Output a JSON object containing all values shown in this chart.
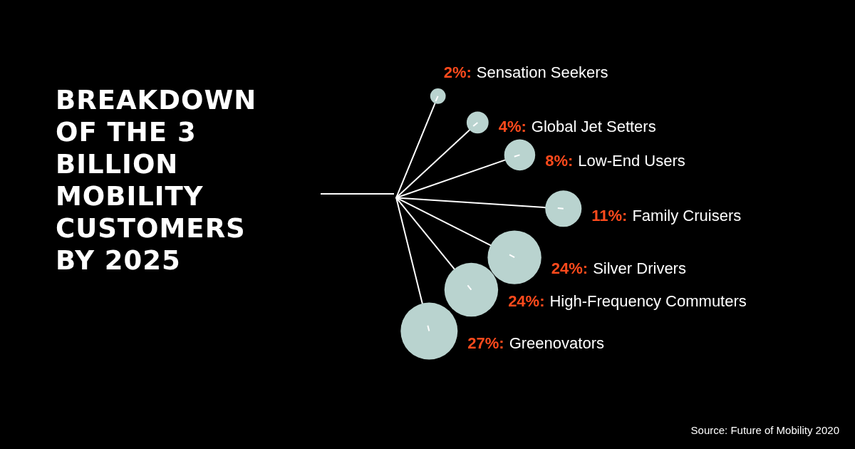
{
  "chart_data": {
    "type": "other",
    "title": "BREAKDOWN OF THE 3 BILLION MOBILITY CUSTOMERS BY 2025",
    "categories": [
      "Sensation Seekers",
      "Global Jet Setters",
      "Low-End Users",
      "Family Cruisers",
      "Silver Drivers",
      "High-Frequency Commuters",
      "Greenovators"
    ],
    "values": [
      2,
      4,
      8,
      11,
      24,
      24,
      27
    ],
    "value_labels": [
      "2%:",
      "4%:",
      "8%:",
      "11%:",
      "24%:",
      "24%:",
      "27%:"
    ],
    "color": "#b9d3cf",
    "annotations": [
      "Source: Future of Mobility 2020"
    ]
  }
}
